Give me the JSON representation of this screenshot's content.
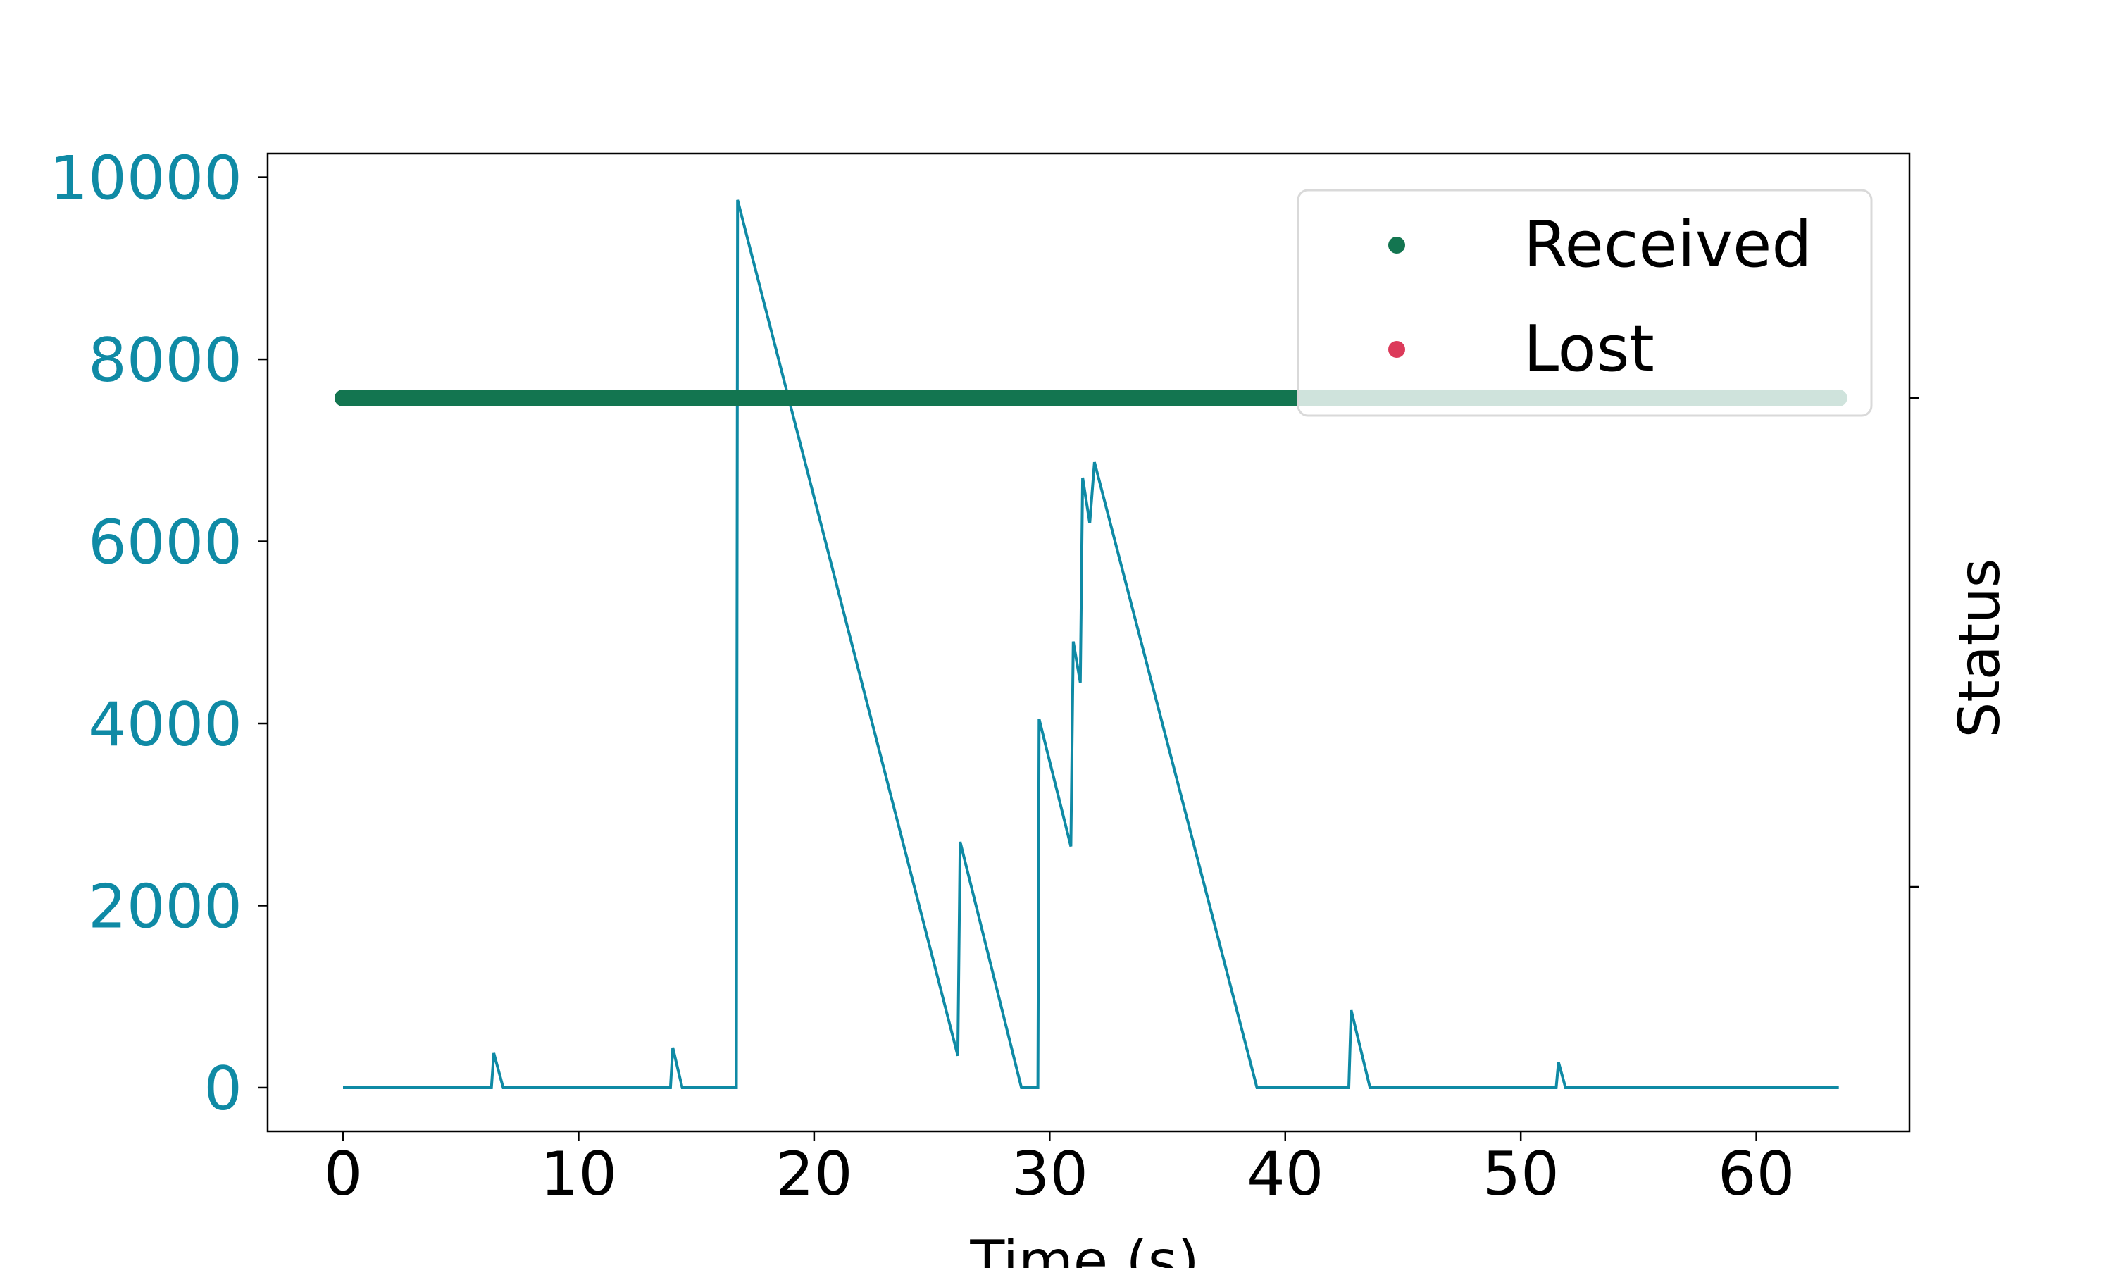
{
  "chart_data": {
    "type": "line",
    "xlabel": "Time (s)",
    "ylabel_right": "Status",
    "xlim": [
      -3.2,
      66.5
    ],
    "ylim": [
      -480,
      10260
    ],
    "x_ticks": [
      0,
      10,
      20,
      30,
      40,
      50,
      60
    ],
    "y_ticks": [
      0,
      2000,
      4000,
      6000,
      8000,
      10000
    ],
    "right_ticks": [
      0.75,
      0.25
    ],
    "grid": false,
    "legend": {
      "placement": "top-right",
      "entries": [
        {
          "label": "Received",
          "color": "#137550"
        },
        {
          "label": "Lost",
          "color": "#dc3a5a"
        }
      ]
    },
    "colors": {
      "series": "#0f8aa5",
      "received": "#137550",
      "lost": "#dc3a5a",
      "left_axis_text": "#0f8aa5"
    },
    "series": [
      {
        "color": "#0f8aa5",
        "x": [
          0,
          6.3,
          6.4,
          6.8,
          13.9,
          14.0,
          14.4,
          16.7,
          16.75,
          26.1,
          26.2,
          28.8,
          29.5,
          29.55,
          30.9,
          31.0,
          31.3,
          31.4,
          31.7,
          31.9,
          38.8,
          42.7,
          42.8,
          43.6,
          51.5,
          51.6,
          51.9,
          63.5
        ],
        "y": [
          0,
          0,
          380,
          0,
          0,
          440,
          0,
          0,
          9750,
          350,
          2700,
          0,
          0,
          4050,
          2650,
          4900,
          4450,
          6700,
          6200,
          6870,
          0,
          0,
          850,
          0,
          0,
          280,
          0,
          0
        ]
      },
      {
        "name": "Received",
        "axis": "right",
        "color": "#137550",
        "x": [
          0,
          63.5
        ],
        "y": [
          0.75,
          0.75
        ]
      }
    ]
  }
}
